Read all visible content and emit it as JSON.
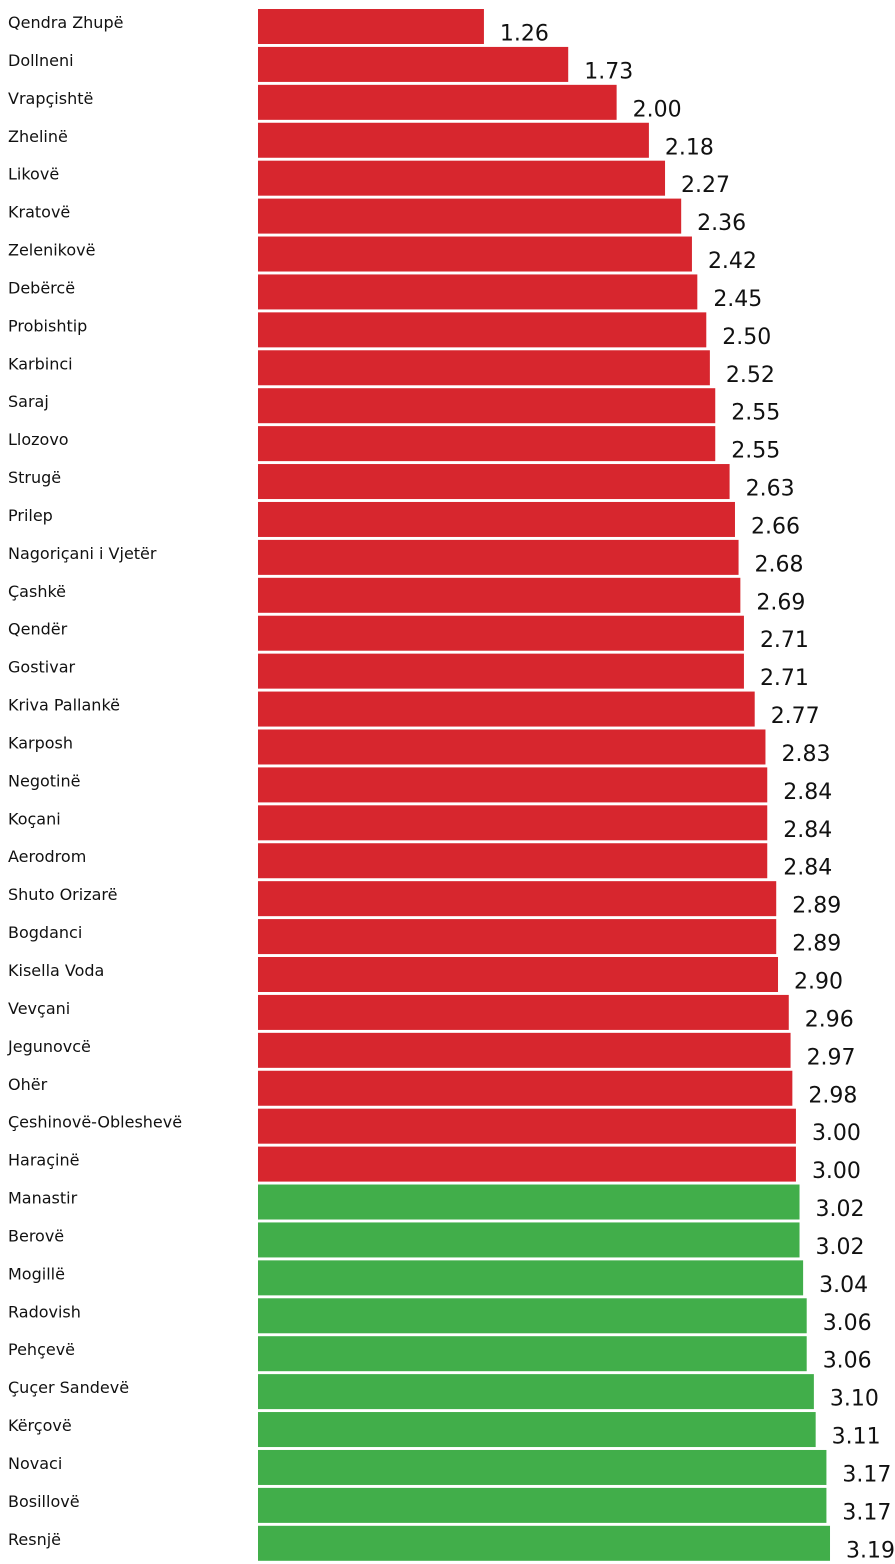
{
  "chart_data": {
    "type": "barh",
    "categories": [
      "Qendra Zhupë",
      "Dollneni",
      "Vrapçishtë",
      "Zhelinë",
      "Likovë",
      "Kratovë",
      "Zelenikovë",
      "Debërcë",
      "Probishtip",
      "Karbinci",
      "Saraj",
      "Llozovo",
      "Strugë",
      "Prilep",
      "Nagoriçani i Vjetër",
      "Çashkë",
      "Qendër",
      "Gostivar",
      "Kriva Pallankë",
      "Karposh",
      "Negotinë",
      "Koçani",
      "Aerodrom",
      "Shuto Orizarë",
      "Bogdanci",
      "Kisella Voda",
      "Vevçani",
      "Jegunovcë",
      "Ohër",
      "Çeshinovë-Obleshevë",
      "Haraçinë",
      "Manastir",
      "Berovë",
      "Mogillë",
      "Radovish",
      "Pehçevë",
      "Çuçer Sandevë",
      "Kërçovë",
      "Novaci",
      "Bosillovë",
      "Resnjë"
    ],
    "values": [
      1.26,
      1.73,
      2.0,
      2.18,
      2.27,
      2.36,
      2.42,
      2.45,
      2.5,
      2.52,
      2.55,
      2.55,
      2.63,
      2.66,
      2.68,
      2.69,
      2.71,
      2.71,
      2.77,
      2.83,
      2.84,
      2.84,
      2.84,
      2.89,
      2.89,
      2.9,
      2.96,
      2.97,
      2.98,
      3.0,
      3.0,
      3.02,
      3.02,
      3.04,
      3.06,
      3.06,
      3.1,
      3.11,
      3.17,
      3.17,
      3.19
    ],
    "value_labels": [
      "1.26",
      "1.73",
      "2.00",
      "2.18",
      "2.27",
      "2.36",
      "2.42",
      "2.45",
      "2.50",
      "2.52",
      "2.55",
      "2.55",
      "2.63",
      "2.66",
      "2.68",
      "2.69",
      "2.71",
      "2.71",
      "2.77",
      "2.83",
      "2.84",
      "2.84",
      "2.84",
      "2.89",
      "2.89",
      "2.90",
      "2.96",
      "2.97",
      "2.98",
      "3.00",
      "3.00",
      "3.02",
      "3.02",
      "3.04",
      "3.06",
      "3.06",
      "3.10",
      "3.11",
      "3.17",
      "3.17",
      "3.19"
    ],
    "colors": [
      "#d7262e",
      "#d7262e",
      "#d7262e",
      "#d7262e",
      "#d7262e",
      "#d7262e",
      "#d7262e",
      "#d7262e",
      "#d7262e",
      "#d7262e",
      "#d7262e",
      "#d7262e",
      "#d7262e",
      "#d7262e",
      "#d7262e",
      "#d7262e",
      "#d7262e",
      "#d7262e",
      "#d7262e",
      "#d7262e",
      "#d7262e",
      "#d7262e",
      "#d7262e",
      "#d7262e",
      "#d7262e",
      "#d7262e",
      "#d7262e",
      "#d7262e",
      "#d7262e",
      "#d7262e",
      "#d7262e",
      "#41ae4a",
      "#41ae4a",
      "#41ae4a",
      "#41ae4a",
      "#41ae4a",
      "#41ae4a",
      "#41ae4a",
      "#41ae4a",
      "#41ae4a",
      "#41ae4a"
    ],
    "xlim": [
      0,
      3.5
    ]
  }
}
